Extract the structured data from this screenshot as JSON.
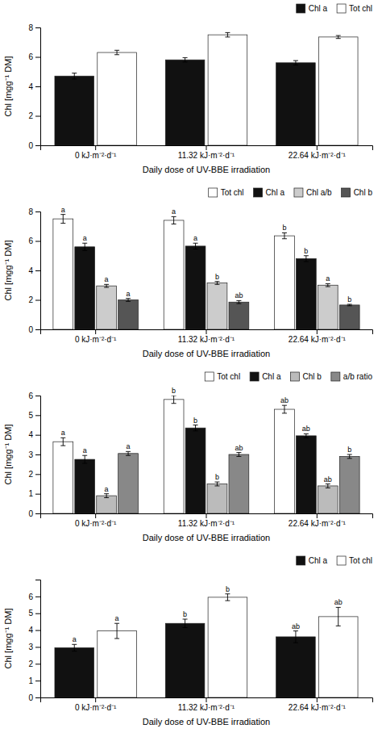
{
  "chart_data": [
    {
      "type": "bar",
      "x_label": "Daily dose of UV-BBE irradiation",
      "y_label": "Chl [mgg⁻¹ DM]",
      "categories": [
        "0 kJ·m⁻²·d⁻¹",
        "11.32 kJ·m⁻²·d⁻¹",
        "22.64 kJ·m⁻²·d⁻¹"
      ],
      "series": [
        {
          "name": "Chl a",
          "color": "#111111",
          "values": [
            4.7,
            5.8,
            5.6
          ],
          "errors": [
            0.2,
            0.15,
            0.15
          ]
        },
        {
          "name": "Tot chl",
          "color": "#ffffff",
          "values": [
            6.3,
            7.5,
            7.35
          ],
          "errors": [
            0.15,
            0.15,
            0.1
          ]
        }
      ],
      "ylim": [
        0,
        8
      ],
      "yticks": [
        0,
        2,
        4,
        6,
        8
      ],
      "legend": "upper right"
    },
    {
      "type": "bar",
      "x_label": "Daily dose of UV-BBE irradiation",
      "y_label": "Chl [mgg⁻¹ DM]",
      "categories": [
        "0 kJ·m⁻²·d⁻¹",
        "11.32 kJ·m⁻²·d⁻¹",
        "22.64 kJ·m⁻²·d⁻¹"
      ],
      "series": [
        {
          "name": "Tot chl",
          "color": "#ffffff",
          "values": [
            7.5,
            7.4,
            6.35
          ],
          "errors": [
            0.3,
            0.25,
            0.2
          ],
          "annotations": [
            "a",
            "a",
            "b"
          ]
        },
        {
          "name": "Chl a",
          "color": "#111111",
          "values": [
            5.6,
            5.65,
            4.8
          ],
          "errors": [
            0.25,
            0.2,
            0.2
          ],
          "annotations": [
            "a",
            "a",
            "b"
          ]
        },
        {
          "name": "Chl a/b",
          "color": "#cccccc",
          "values": [
            2.95,
            3.15,
            3.0
          ],
          "errors": [
            0.1,
            0.1,
            0.1
          ],
          "annotations": [
            "a",
            "b",
            "a"
          ]
        },
        {
          "name": "Chl b",
          "color": "#555555",
          "values": [
            2.0,
            1.85,
            1.65
          ],
          "errors": [
            0.1,
            0.1,
            0.05
          ],
          "annotations": [
            "a",
            "ab",
            "b"
          ]
        }
      ],
      "ylim": [
        0,
        8
      ],
      "yticks": [
        0,
        2,
        4,
        6,
        8
      ],
      "legend": "upper right"
    },
    {
      "type": "bar",
      "x_label": "Daily dose of UV-BBE irradiation",
      "y_label": "Chl [mgg⁻¹ DM]",
      "categories": [
        "0 kJ·m⁻²·d⁻¹",
        "11.32 kJ·m⁻²·d⁻¹",
        "22.64 kJ·m⁻²·d⁻¹"
      ],
      "series": [
        {
          "name": "Tot chl",
          "color": "#ffffff",
          "values": [
            3.65,
            5.8,
            5.3
          ],
          "errors": [
            0.2,
            0.2,
            0.2
          ],
          "annotations": [
            "a",
            "b",
            "ab"
          ]
        },
        {
          "name": "Chl a",
          "color": "#111111",
          "values": [
            2.75,
            4.35,
            3.95
          ],
          "errors": [
            0.2,
            0.15,
            0.1
          ],
          "annotations": [
            "a",
            "b",
            "ab"
          ]
        },
        {
          "name": "Chl b",
          "color": "#bbbbbb",
          "values": [
            0.9,
            1.5,
            1.4
          ],
          "errors": [
            0.1,
            0.1,
            0.1
          ],
          "annotations": [
            "a",
            "b",
            "ab"
          ]
        },
        {
          "name": "a/b ratio",
          "color": "#888888",
          "values": [
            3.05,
            3.0,
            2.9
          ],
          "errors": [
            0.1,
            0.1,
            0.1
          ],
          "annotations": [
            "a",
            "ab",
            "b"
          ]
        }
      ],
      "ylim": [
        0,
        6
      ],
      "yticks": [
        0,
        1,
        2,
        3,
        4,
        5,
        6
      ],
      "legend": "upper right"
    },
    {
      "type": "bar",
      "x_label": "Daily dose of UV-BBE irradiation",
      "y_label": "Chl [mgg⁻¹ DM]",
      "categories": [
        "0 kJ·m⁻²·d⁻¹",
        "11.32 kJ·m⁻²·d⁻¹",
        "22.64 kJ·m⁻²·d⁻¹"
      ],
      "series": [
        {
          "name": "Chl a",
          "color": "#111111",
          "values": [
            2.95,
            4.4,
            3.6
          ],
          "errors": [
            0.2,
            0.25,
            0.35
          ],
          "annotations": [
            "a",
            "b",
            "ab"
          ]
        },
        {
          "name": "Tot chl",
          "color": "#ffffff",
          "values": [
            3.95,
            5.95,
            4.8
          ],
          "errors": [
            0.45,
            0.2,
            0.55
          ],
          "annotations": [
            "a",
            "b",
            "ab"
          ]
        }
      ],
      "ylim": [
        0,
        7
      ],
      "yticks": [
        0,
        1,
        2,
        3,
        4,
        5,
        6
      ],
      "legend": "upper right"
    }
  ]
}
